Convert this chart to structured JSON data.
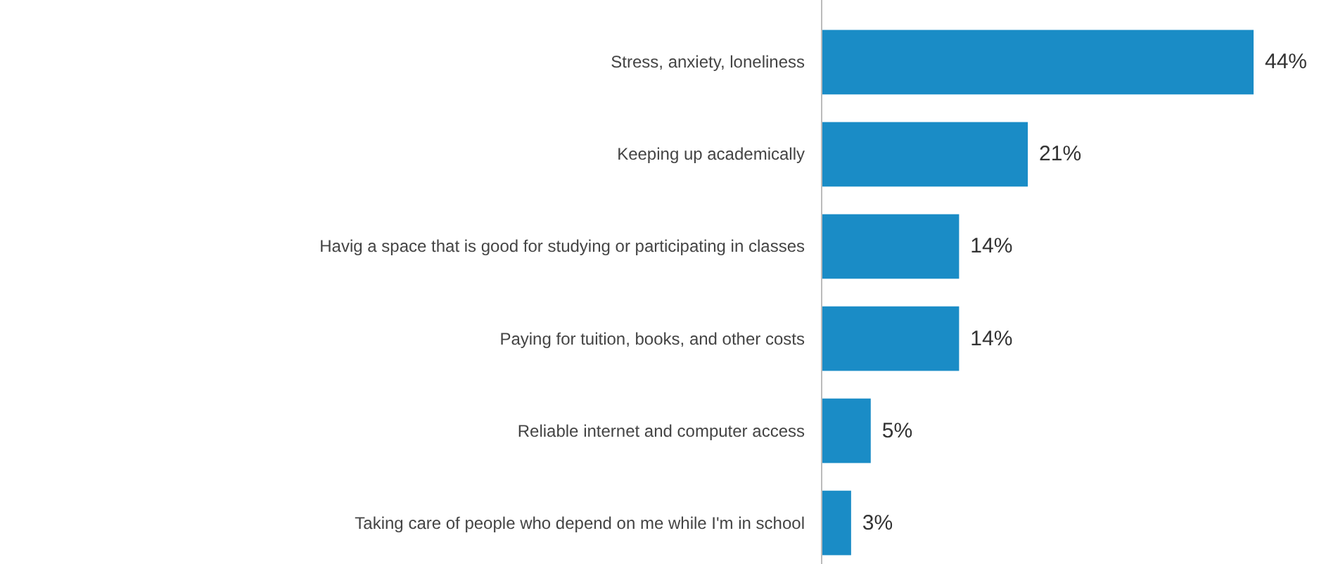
{
  "chart_data": {
    "type": "bar",
    "orientation": "horizontal",
    "categories": [
      "Stress, anxiety, loneliness",
      "Keeping up academically",
      "Havig a space that is good for studying or participating in classes",
      "Paying for tuition, books, and other costs",
      "Reliable internet and computer access",
      "Taking care of people who depend on me while I'm in school"
    ],
    "values": [
      44,
      21,
      14,
      14,
      5,
      3
    ],
    "value_labels": [
      "44%",
      "21%",
      "14%",
      "14%",
      "5%",
      "3%"
    ],
    "color": "#1a8cc6"
  }
}
